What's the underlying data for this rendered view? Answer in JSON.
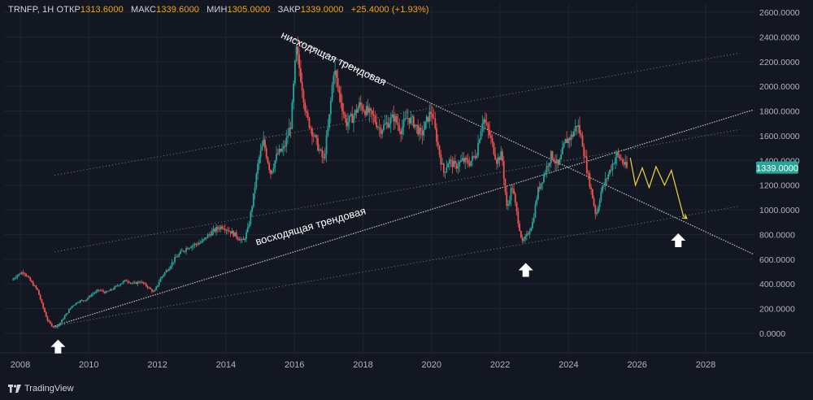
{
  "header": {
    "symbol": "TRNFP, 1H",
    "open_label": "ОТКР",
    "open": "1313.6000",
    "high_label": "МАКС",
    "high": "1339.6000",
    "low_label": "МИН",
    "low": "1305.0000",
    "close_label": "ЗАКР",
    "close": "1339.0000",
    "change": "+25.4000 (+1.93%)"
  },
  "price_tag": "1339.0000",
  "brand": "TradingView",
  "colors": {
    "background": "#131722",
    "up": "#26a69a",
    "down": "#ef5350",
    "grid": "#1f2430",
    "axis_text": "#b2b5be",
    "price_tag": "#26a69a",
    "forecast": "#f5d442",
    "trendline": "#d1d4dc",
    "annotation": "#ffffff"
  },
  "chart_data": {
    "type": "candlestick",
    "x_ticks": [
      "2008",
      "2010",
      "2012",
      "2014",
      "2016",
      "2018",
      "2020",
      "2022",
      "2024",
      "2026",
      "2028"
    ],
    "xlim": [
      2007.7,
      2029.4
    ],
    "y_ticks": [
      "0.0000",
      "200.0000",
      "400.0000",
      "600.0000",
      "800.0000",
      "1000.0000",
      "1200.0000",
      "1400.0000",
      "1600.0000",
      "1800.0000",
      "2000.0000",
      "2200.0000",
      "2400.0000",
      "2600.0000"
    ],
    "ylim": [
      -50,
      2620
    ],
    "grid": true,
    "last_price": 1339,
    "price_path": [
      [
        2007.75,
        430
      ],
      [
        2007.9,
        470
      ],
      [
        2008.1,
        500
      ],
      [
        2008.3,
        420
      ],
      [
        2008.5,
        350
      ],
      [
        2008.65,
        220
      ],
      [
        2008.8,
        100
      ],
      [
        2008.95,
        55
      ],
      [
        2009.1,
        60
      ],
      [
        2009.3,
        140
      ],
      [
        2009.5,
        220
      ],
      [
        2009.7,
        260
      ],
      [
        2009.9,
        270
      ],
      [
        2010.1,
        320
      ],
      [
        2010.3,
        350
      ],
      [
        2010.5,
        330
      ],
      [
        2010.7,
        360
      ],
      [
        2010.9,
        400
      ],
      [
        2011.1,
        430
      ],
      [
        2011.3,
        400
      ],
      [
        2011.5,
        420
      ],
      [
        2011.7,
        380
      ],
      [
        2011.9,
        330
      ],
      [
        2012.1,
        450
      ],
      [
        2012.3,
        520
      ],
      [
        2012.5,
        600
      ],
      [
        2012.7,
        660
      ],
      [
        2012.9,
        700
      ],
      [
        2013.1,
        720
      ],
      [
        2013.3,
        740
      ],
      [
        2013.5,
        800
      ],
      [
        2013.7,
        840
      ],
      [
        2013.9,
        870
      ],
      [
        2014.1,
        830
      ],
      [
        2014.3,
        790
      ],
      [
        2014.5,
        740
      ],
      [
        2014.65,
        850
      ],
      [
        2014.8,
        1100
      ],
      [
        2014.95,
        1400
      ],
      [
        2015.1,
        1550
      ],
      [
        2015.3,
        1300
      ],
      [
        2015.5,
        1450
      ],
      [
        2015.7,
        1500
      ],
      [
        2015.9,
        1700
      ],
      [
        2016.05,
        2300
      ],
      [
        2016.2,
        2050
      ],
      [
        2016.35,
        1750
      ],
      [
        2016.5,
        1650
      ],
      [
        2016.7,
        1500
      ],
      [
        2016.85,
        1400
      ],
      [
        2017.0,
        1700
      ],
      [
        2017.15,
        2150
      ],
      [
        2017.3,
        1950
      ],
      [
        2017.5,
        1700
      ],
      [
        2017.7,
        1750
      ],
      [
        2017.9,
        1850
      ],
      [
        2018.1,
        1800
      ],
      [
        2018.3,
        1750
      ],
      [
        2018.5,
        1650
      ],
      [
        2018.7,
        1700
      ],
      [
        2018.9,
        1750
      ],
      [
        2019.1,
        1650
      ],
      [
        2019.3,
        1750
      ],
      [
        2019.5,
        1700
      ],
      [
        2019.7,
        1600
      ],
      [
        2019.9,
        1750
      ],
      [
        2020.0,
        1800
      ],
      [
        2020.2,
        1500
      ],
      [
        2020.35,
        1300
      ],
      [
        2020.5,
        1400
      ],
      [
        2020.7,
        1350
      ],
      [
        2020.9,
        1400
      ],
      [
        2021.1,
        1380
      ],
      [
        2021.3,
        1450
      ],
      [
        2021.5,
        1750
      ],
      [
        2021.7,
        1600
      ],
      [
        2021.9,
        1400
      ],
      [
        2022.05,
        1450
      ],
      [
        2022.2,
        1000
      ],
      [
        2022.35,
        1200
      ],
      [
        2022.5,
        950
      ],
      [
        2022.65,
        730
      ],
      [
        2022.8,
        800
      ],
      [
        2022.95,
        900
      ],
      [
        2023.1,
        1150
      ],
      [
        2023.3,
        1300
      ],
      [
        2023.5,
        1450
      ],
      [
        2023.7,
        1350
      ],
      [
        2023.9,
        1550
      ],
      [
        2024.1,
        1600
      ],
      [
        2024.25,
        1700
      ],
      [
        2024.4,
        1550
      ],
      [
        2024.55,
        1300
      ],
      [
        2024.7,
        1100
      ],
      [
        2024.8,
        950
      ],
      [
        2024.95,
        1150
      ],
      [
        2025.1,
        1250
      ],
      [
        2025.25,
        1350
      ],
      [
        2025.4,
        1450
      ],
      [
        2025.55,
        1400
      ],
      [
        2025.7,
        1339
      ]
    ],
    "forecast_path": [
      [
        2025.8,
        1420
      ],
      [
        2025.95,
        1200
      ],
      [
        2026.15,
        1340
      ],
      [
        2026.35,
        1180
      ],
      [
        2026.55,
        1350
      ],
      [
        2026.8,
        1200
      ],
      [
        2027.0,
        1320
      ],
      [
        2027.35,
        950
      ],
      [
        2027.45,
        930
      ]
    ],
    "trendlines": [
      {
        "id": "upper-channel",
        "p1": [
          2009.0,
          1280
        ],
        "p2": [
          2029.0,
          2270
        ],
        "style": "dotted"
      },
      {
        "id": "middle-channel",
        "p1": [
          2009.0,
          660
        ],
        "p2": [
          2029.0,
          1650
        ],
        "style": "dotted"
      },
      {
        "id": "lower-channel",
        "p1": [
          2009.0,
          60
        ],
        "p2": [
          2029.0,
          1030
        ],
        "style": "dotted"
      },
      {
        "id": "rising-trendline",
        "p1": [
          2009.0,
          60
        ],
        "p2": [
          2029.4,
          1810
        ],
        "style": "dense"
      },
      {
        "id": "falling-trendline",
        "p1": [
          2016.0,
          2380
        ],
        "p2": [
          2029.4,
          640
        ],
        "style": "dense"
      }
    ],
    "annotations": [
      {
        "text": "нисходящая трендовая",
        "x": 2017.1,
        "y": 2200,
        "angle": 25
      },
      {
        "text": "восходящая трендовая",
        "x": 2016.5,
        "y": 840,
        "angle": -16
      }
    ],
    "markers": [
      {
        "type": "up-arrow",
        "x": 2009.1,
        "y": -110
      },
      {
        "type": "up-arrow",
        "x": 2022.75,
        "y": 510
      },
      {
        "type": "up-arrow",
        "x": 2027.2,
        "y": 750
      }
    ]
  }
}
